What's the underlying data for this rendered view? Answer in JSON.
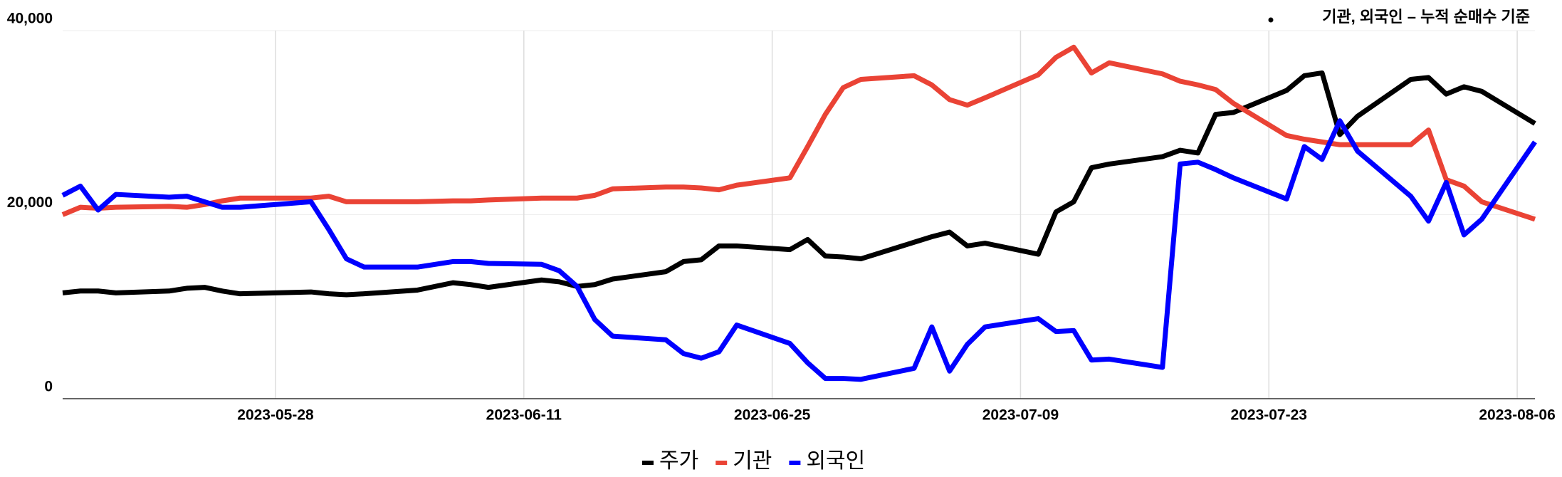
{
  "chart_data": {
    "type": "line",
    "annotation": "기관, 외국인 – 누적 순매수 기준",
    "x": [
      "2023-05-16",
      "2023-05-17",
      "2023-05-18",
      "2023-05-19",
      "2023-05-22",
      "2023-05-23",
      "2023-05-24",
      "2023-05-25",
      "2023-05-26",
      "2023-05-30",
      "2023-05-31",
      "2023-06-01",
      "2023-06-02",
      "2023-06-05",
      "2023-06-07",
      "2023-06-08",
      "2023-06-09",
      "2023-06-12",
      "2023-06-13",
      "2023-06-14",
      "2023-06-15",
      "2023-06-16",
      "2023-06-19",
      "2023-06-20",
      "2023-06-21",
      "2023-06-22",
      "2023-06-23",
      "2023-06-26",
      "2023-06-27",
      "2023-06-28",
      "2023-06-29",
      "2023-06-30",
      "2023-07-03",
      "2023-07-04",
      "2023-07-05",
      "2023-07-06",
      "2023-07-07",
      "2023-07-10",
      "2023-07-11",
      "2023-07-12",
      "2023-07-13",
      "2023-07-14",
      "2023-07-17",
      "2023-07-18",
      "2023-07-19",
      "2023-07-20",
      "2023-07-21",
      "2023-07-24",
      "2023-07-25",
      "2023-07-26",
      "2023-07-27",
      "2023-07-28",
      "2023-07-31",
      "2023-08-01",
      "2023-08-02",
      "2023-08-03",
      "2023-08-04",
      "2023-08-07"
    ],
    "series": [
      {
        "name": "주가",
        "color": "#000000",
        "values": [
          11500,
          11700,
          11700,
          11500,
          11700,
          12000,
          12100,
          11700,
          11400,
          11600,
          11400,
          11300,
          11400,
          11800,
          12600,
          12400,
          12100,
          12900,
          12700,
          12200,
          12400,
          13000,
          13800,
          14900,
          15100,
          16600,
          16600,
          16200,
          17300,
          15500,
          15400,
          15200,
          17000,
          17600,
          18100,
          16600,
          16900,
          15700,
          20300,
          21400,
          25100,
          25500,
          26300,
          27000,
          26700,
          30900,
          31100,
          33500,
          35100,
          35400,
          28700,
          30700,
          34700,
          34900,
          33100,
          33900,
          33400,
          29900
        ]
      },
      {
        "name": "기관",
        "color": "#ea4335",
        "values": [
          20000,
          20800,
          20700,
          20800,
          20900,
          20800,
          21100,
          21500,
          21800,
          21800,
          22000,
          21400,
          21400,
          21400,
          21500,
          21500,
          21600,
          21800,
          21800,
          21800,
          22100,
          22800,
          23000,
          23000,
          22900,
          22700,
          23200,
          24000,
          27400,
          30900,
          33800,
          34700,
          35100,
          34100,
          32500,
          31900,
          32700,
          35200,
          37100,
          38200,
          35400,
          36500,
          35300,
          34500,
          34100,
          33600,
          32100,
          28600,
          28200,
          27900,
          27600,
          27600,
          27600,
          29200,
          23800,
          23100,
          21400,
          19500
        ]
      },
      {
        "name": "외국인",
        "color": "#0000ff",
        "values": [
          22100,
          23100,
          20500,
          22200,
          21900,
          22000,
          21400,
          20800,
          20800,
          21400,
          18400,
          15200,
          14300,
          14300,
          14900,
          14900,
          14700,
          14600,
          13900,
          12200,
          8600,
          6800,
          6400,
          4900,
          4400,
          5100,
          8000,
          6000,
          3900,
          2200,
          2200,
          2100,
          3300,
          7800,
          3000,
          5900,
          7800,
          8700,
          7300,
          7400,
          4200,
          4300,
          3400,
          25500,
          25700,
          24900,
          24000,
          21700,
          27400,
          26000,
          30200,
          26900,
          22000,
          19300,
          23500,
          17800,
          19500,
          27900
        ]
      }
    ],
    "xlim": [
      "2023-05-16",
      "2023-08-07"
    ],
    "xticks": [
      "2023-05-28",
      "2023-06-11",
      "2023-06-25",
      "2023-07-09",
      "2023-07-23",
      "2023-08-06"
    ],
    "ylim": [
      0,
      40000
    ],
    "yticks": [
      0,
      {
        "value": 20000,
        "label": "20,000"
      },
      {
        "value": 40000,
        "label": "40,000"
      }
    ],
    "grid": true
  }
}
